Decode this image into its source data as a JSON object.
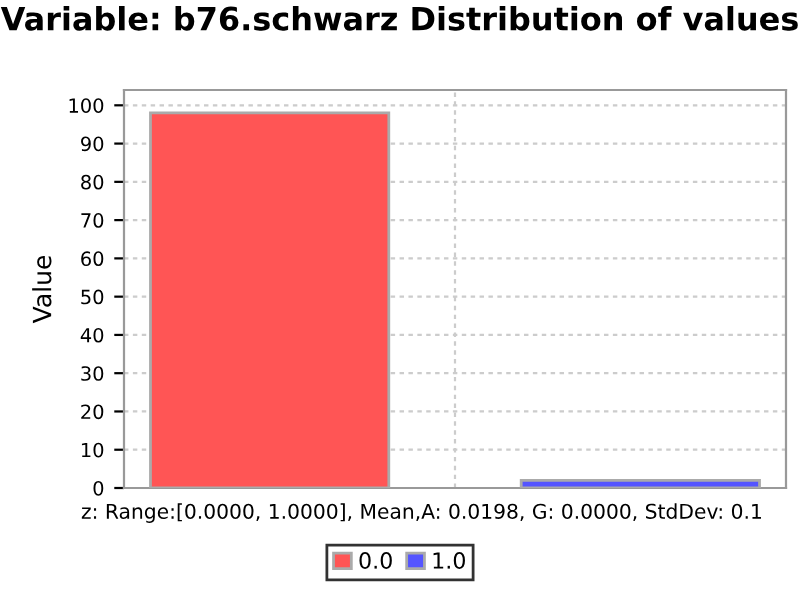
{
  "chart_data": {
    "type": "bar",
    "title": "Variable: b76.schwarz Distribution of values",
    "xlabel": "z: Range:[0.0000, 1.0000], Mean,A: 0.0198, G: 0.0000, StdDev: 0.1",
    "ylabel": "Value",
    "categories": [
      null
    ],
    "series": [
      {
        "name": "0.0",
        "color": "#ff5555",
        "values": [
          98
        ]
      },
      {
        "name": "1.0",
        "color": "#5555ff",
        "values": [
          2
        ]
      }
    ],
    "ylim": [
      0,
      104
    ],
    "yticks": [
      0,
      10,
      20,
      30,
      40,
      50,
      60,
      70,
      80,
      90,
      100
    ],
    "grid": true,
    "legend": "bottom"
  }
}
